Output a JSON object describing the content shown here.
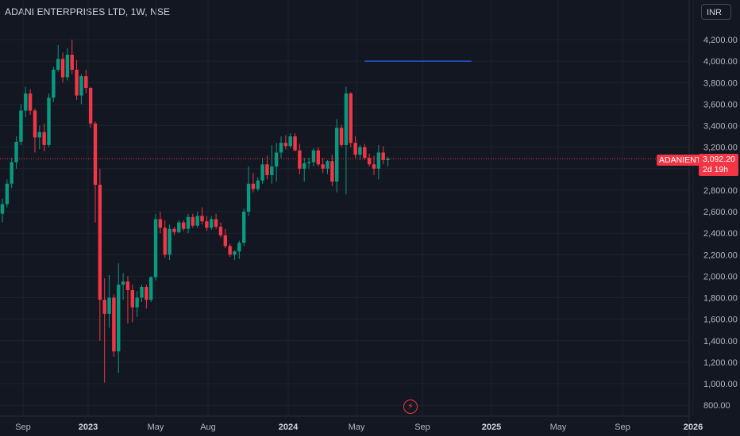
{
  "header": {
    "title": "ADANI ENTERPRISES LTD, 1W, NSE"
  },
  "currency": {
    "label": "INR"
  },
  "price_scale": {
    "ticks": [
      "4,200.00",
      "4,000.00",
      "3,800.00",
      "3,600.00",
      "3,400.00",
      "3,200.00",
      "2,800.00",
      "2,600.00",
      "2,400.00",
      "2,200.00",
      "2,000.00",
      "1,800.00",
      "1,600.00",
      "1,400.00",
      "1,200.00",
      "1,000.00",
      "800.00"
    ]
  },
  "time_scale": {
    "ticks": [
      "Sep",
      "2023",
      "May",
      "Aug",
      "2024",
      "May",
      "Sep",
      "2025",
      "May",
      "Sep",
      "2026"
    ],
    "bold": [
      "2023",
      "2024",
      "2025",
      "2026"
    ]
  },
  "last_price": {
    "ticker": "ADANIENT",
    "price": "3,092.20",
    "countdown": "2d 19h",
    "color": "#f23645"
  },
  "flash_icon": {
    "icon": "lightning-icon"
  },
  "chart_data": {
    "type": "candlestick",
    "title": "ADANI ENTERPRISES LTD, 1W, NSE",
    "interval": "1W",
    "y_range": [
      760,
      4300
    ],
    "colors": {
      "up": "#089981",
      "down": "#f23645",
      "hline": "#2962ff",
      "grid": "#1e222d"
    },
    "grid": true,
    "horizontal_line": {
      "value": 4000,
      "from_index": 78,
      "to_index": 101
    },
    "candles": [
      [
        2580,
        2720,
        2500,
        2670
      ],
      [
        2670,
        2900,
        2640,
        2860
      ],
      [
        2860,
        3100,
        2820,
        3060
      ],
      [
        3060,
        3300,
        3000,
        3250
      ],
      [
        3250,
        3600,
        3220,
        3540
      ],
      [
        3540,
        3760,
        3480,
        3700
      ],
      [
        3700,
        3740,
        3500,
        3540
      ],
      [
        3540,
        3560,
        3150,
        3290
      ],
      [
        3290,
        3400,
        3180,
        3340
      ],
      [
        3340,
        3420,
        3160,
        3220
      ],
      [
        3220,
        3700,
        3200,
        3660
      ],
      [
        3660,
        3950,
        3620,
        3920
      ],
      [
        3920,
        4150,
        3900,
        4020
      ],
      [
        4020,
        4080,
        3800,
        3850
      ],
      [
        3850,
        4120,
        3820,
        4060
      ],
      [
        4060,
        4200,
        3880,
        3920
      ],
      [
        3920,
        4010,
        3640,
        3680
      ],
      [
        3680,
        3880,
        3600,
        3860
      ],
      [
        3860,
        3920,
        3700,
        3750
      ],
      [
        3750,
        3760,
        3380,
        3420
      ],
      [
        3420,
        3440,
        2500,
        2850
      ],
      [
        2850,
        3000,
        1400,
        1780
      ],
      [
        1780,
        1980,
        1010,
        1650
      ],
      [
        1650,
        2010,
        1520,
        1800
      ],
      [
        1800,
        1830,
        1250,
        1300
      ],
      [
        1300,
        2120,
        1100,
        1920
      ],
      [
        1920,
        2030,
        1780,
        1950
      ],
      [
        1950,
        2000,
        1560,
        1870
      ],
      [
        1870,
        1920,
        1570,
        1710
      ],
      [
        1710,
        1860,
        1620,
        1800
      ],
      [
        1800,
        1920,
        1760,
        1900
      ],
      [
        1900,
        1920,
        1700,
        1780
      ],
      [
        1780,
        2000,
        1760,
        1990
      ],
      [
        1990,
        2580,
        1960,
        2530
      ],
      [
        2530,
        2600,
        2400,
        2450
      ],
      [
        2450,
        2520,
        2170,
        2200
      ],
      [
        2200,
        2480,
        2150,
        2440
      ],
      [
        2440,
        2460,
        2380,
        2410
      ],
      [
        2410,
        2520,
        2400,
        2500
      ],
      [
        2500,
        2520,
        2420,
        2440
      ],
      [
        2440,
        2580,
        2400,
        2550
      ],
      [
        2550,
        2580,
        2450,
        2470
      ],
      [
        2470,
        2600,
        2450,
        2560
      ],
      [
        2560,
        2640,
        2480,
        2510
      ],
      [
        2510,
        2560,
        2420,
        2450
      ],
      [
        2450,
        2560,
        2430,
        2530
      ],
      [
        2530,
        2580,
        2440,
        2460
      ],
      [
        2460,
        2500,
        2360,
        2380
      ],
      [
        2380,
        2440,
        2260,
        2280
      ],
      [
        2280,
        2300,
        2180,
        2200
      ],
      [
        2200,
        2240,
        2150,
        2230
      ],
      [
        2230,
        2330,
        2160,
        2310
      ],
      [
        2310,
        2630,
        2280,
        2600
      ],
      [
        2600,
        3020,
        2560,
        2860
      ],
      [
        2860,
        2960,
        2780,
        2810
      ],
      [
        2810,
        2920,
        2790,
        2890
      ],
      [
        2890,
        3100,
        2860,
        3040
      ],
      [
        3040,
        3120,
        2900,
        2940
      ],
      [
        2940,
        3220,
        2860,
        3020
      ],
      [
        3020,
        3240,
        2880,
        3150
      ],
      [
        3150,
        3300,
        3100,
        3240
      ],
      [
        3240,
        3310,
        3180,
        3210
      ],
      [
        3210,
        3330,
        3190,
        3300
      ],
      [
        3300,
        3330,
        3160,
        3170
      ],
      [
        3170,
        3230,
        2950,
        3000
      ],
      [
        3000,
        3100,
        2880,
        3050
      ],
      [
        3050,
        3100,
        3000,
        3060
      ],
      [
        3060,
        3190,
        3020,
        3170
      ],
      [
        3170,
        3200,
        3020,
        3040
      ],
      [
        3040,
        3100,
        2960,
        3000
      ],
      [
        3000,
        3080,
        2950,
        3070
      ],
      [
        3070,
        3130,
        2840,
        2880
      ],
      [
        2880,
        3460,
        2780,
        3380
      ],
      [
        3380,
        3410,
        3200,
        3220
      ],
      [
        3220,
        3760,
        2760,
        3700
      ],
      [
        3700,
        3710,
        3200,
        3240
      ],
      [
        3240,
        3300,
        3100,
        3130
      ],
      [
        3130,
        3220,
        3080,
        3200
      ],
      [
        3200,
        3230,
        3080,
        3100
      ],
      [
        3100,
        3140,
        3020,
        3040
      ],
      [
        3040,
        3120,
        2940,
        3000
      ],
      [
        3000,
        3220,
        2900,
        3150
      ],
      [
        3150,
        3210,
        3040,
        3080
      ],
      [
        3080,
        3110,
        3020,
        3092.2
      ]
    ]
  }
}
